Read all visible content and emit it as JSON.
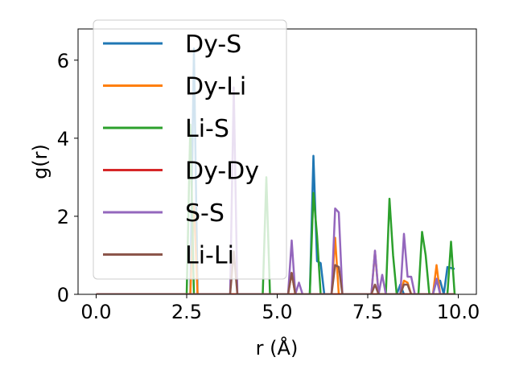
{
  "chart_data": {
    "type": "line",
    "xlabel": "r (Å)",
    "ylabel": "g(r)",
    "xlim": [
      -0.5,
      10.5
    ],
    "ylim": [
      0,
      6.8
    ],
    "xticks": [
      0.0,
      2.5,
      5.0,
      7.5,
      10.0
    ],
    "xtick_labels": [
      "0.0",
      "2.5",
      "5.0",
      "7.5",
      "10.0"
    ],
    "yticks": [
      0,
      2,
      4,
      6
    ],
    "ytick_labels": [
      "0",
      "2",
      "4",
      "6"
    ],
    "grid": false,
    "legend_position": "upper-left",
    "series": [
      {
        "name": "Dy-S",
        "color": "#1f77b4",
        "points": [
          [
            0,
            0
          ],
          [
            2.6,
            0
          ],
          [
            2.7,
            6.3
          ],
          [
            2.8,
            0
          ],
          [
            5.9,
            0
          ],
          [
            6.0,
            3.55
          ],
          [
            6.1,
            0.85
          ],
          [
            6.2,
            0.8
          ],
          [
            6.3,
            0
          ],
          [
            8.3,
            0
          ],
          [
            8.4,
            0.25
          ],
          [
            8.5,
            0
          ],
          [
            9.3,
            0
          ],
          [
            9.4,
            0.35
          ],
          [
            9.5,
            0.35
          ],
          [
            9.6,
            0
          ],
          [
            9.7,
            0.7
          ],
          [
            9.9,
            0.65
          ]
        ]
      },
      {
        "name": "Dy-Li",
        "color": "#ff7f0e",
        "points": [
          [
            0,
            0
          ],
          [
            2.6,
            0
          ],
          [
            2.7,
            2.3
          ],
          [
            2.8,
            0
          ],
          [
            5.3,
            0
          ],
          [
            5.4,
            0.55
          ],
          [
            5.5,
            0
          ],
          [
            6.5,
            0
          ],
          [
            6.6,
            1.45
          ],
          [
            6.7,
            0
          ],
          [
            7.6,
            0
          ],
          [
            7.7,
            1.1
          ],
          [
            7.8,
            0
          ],
          [
            8.4,
            0
          ],
          [
            8.5,
            0.35
          ],
          [
            8.6,
            0.3
          ],
          [
            8.7,
            0
          ],
          [
            9.3,
            0
          ],
          [
            9.4,
            0.75
          ],
          [
            9.5,
            0
          ],
          [
            9.9,
            0
          ]
        ]
      },
      {
        "name": "Li-S",
        "color": "#2ca02c",
        "points": [
          [
            0,
            0
          ],
          [
            2.5,
            0
          ],
          [
            2.6,
            4.35
          ],
          [
            2.7,
            0
          ],
          [
            4.6,
            0
          ],
          [
            4.7,
            3.0
          ],
          [
            4.8,
            0
          ],
          [
            5.9,
            0
          ],
          [
            6.0,
            2.6
          ],
          [
            6.1,
            1.5
          ],
          [
            6.2,
            0
          ],
          [
            8.0,
            0
          ],
          [
            8.1,
            2.45
          ],
          [
            8.2,
            1.0
          ],
          [
            8.3,
            0
          ],
          [
            8.9,
            0
          ],
          [
            9.0,
            1.6
          ],
          [
            9.1,
            1.0
          ],
          [
            9.2,
            0
          ],
          [
            9.7,
            0
          ],
          [
            9.8,
            1.35
          ],
          [
            9.9,
            0
          ]
        ]
      },
      {
        "name": "Dy-Dy",
        "color": "#d62728",
        "points": [
          [
            0,
            0
          ],
          [
            9.9,
            0
          ]
        ]
      },
      {
        "name": "S-S",
        "color": "#9467bd",
        "points": [
          [
            0,
            0
          ],
          [
            3.7,
            0
          ],
          [
            3.8,
            5.3
          ],
          [
            3.9,
            0
          ],
          [
            5.3,
            0
          ],
          [
            5.4,
            1.38
          ],
          [
            5.5,
            0
          ],
          [
            5.6,
            0.3
          ],
          [
            5.7,
            0
          ],
          [
            6.5,
            0
          ],
          [
            6.6,
            2.2
          ],
          [
            6.7,
            2.1
          ],
          [
            6.8,
            0
          ],
          [
            7.6,
            0
          ],
          [
            7.7,
            1.12
          ],
          [
            7.8,
            0
          ],
          [
            7.9,
            0.5
          ],
          [
            8.0,
            0
          ],
          [
            8.4,
            0
          ],
          [
            8.5,
            1.55
          ],
          [
            8.6,
            0.45
          ],
          [
            8.7,
            0.45
          ],
          [
            8.8,
            0
          ],
          [
            9.3,
            0
          ],
          [
            9.4,
            0.4
          ],
          [
            9.5,
            0
          ],
          [
            9.9,
            0
          ]
        ]
      },
      {
        "name": "Li-Li",
        "color": "#8c564b",
        "points": [
          [
            0,
            0
          ],
          [
            3.7,
            0
          ],
          [
            3.8,
            1.1
          ],
          [
            3.9,
            0
          ],
          [
            5.3,
            0
          ],
          [
            5.4,
            0.55
          ],
          [
            5.5,
            0
          ],
          [
            6.5,
            0
          ],
          [
            6.6,
            0.75
          ],
          [
            6.7,
            0.7
          ],
          [
            6.8,
            0
          ],
          [
            7.6,
            0
          ],
          [
            7.7,
            0.25
          ],
          [
            7.8,
            0
          ],
          [
            8.4,
            0
          ],
          [
            8.5,
            0.25
          ],
          [
            8.6,
            0.25
          ],
          [
            8.7,
            0
          ],
          [
            9.9,
            0
          ]
        ]
      }
    ]
  }
}
